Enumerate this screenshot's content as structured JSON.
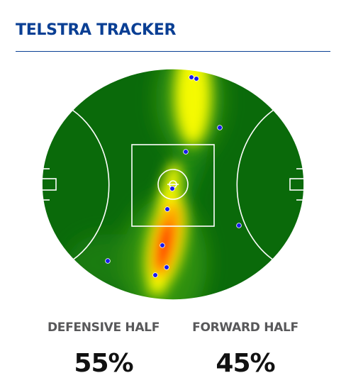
{
  "header": {
    "title": "TELSTRA TRACKER"
  },
  "pitch": {
    "field_color": "#0a6a0a",
    "line_color": "#ffffff",
    "dot_color": "#1a1aee",
    "heat_colors": [
      "#1f8f14",
      "#9cc80e",
      "#ffff00",
      "#ff9900",
      "#ff0000"
    ]
  },
  "stats": {
    "defensive": {
      "label": "DEFENSIVE HALF",
      "value": "55%"
    },
    "forward": {
      "label": "FORWARD HALF",
      "value": "45%"
    }
  }
}
